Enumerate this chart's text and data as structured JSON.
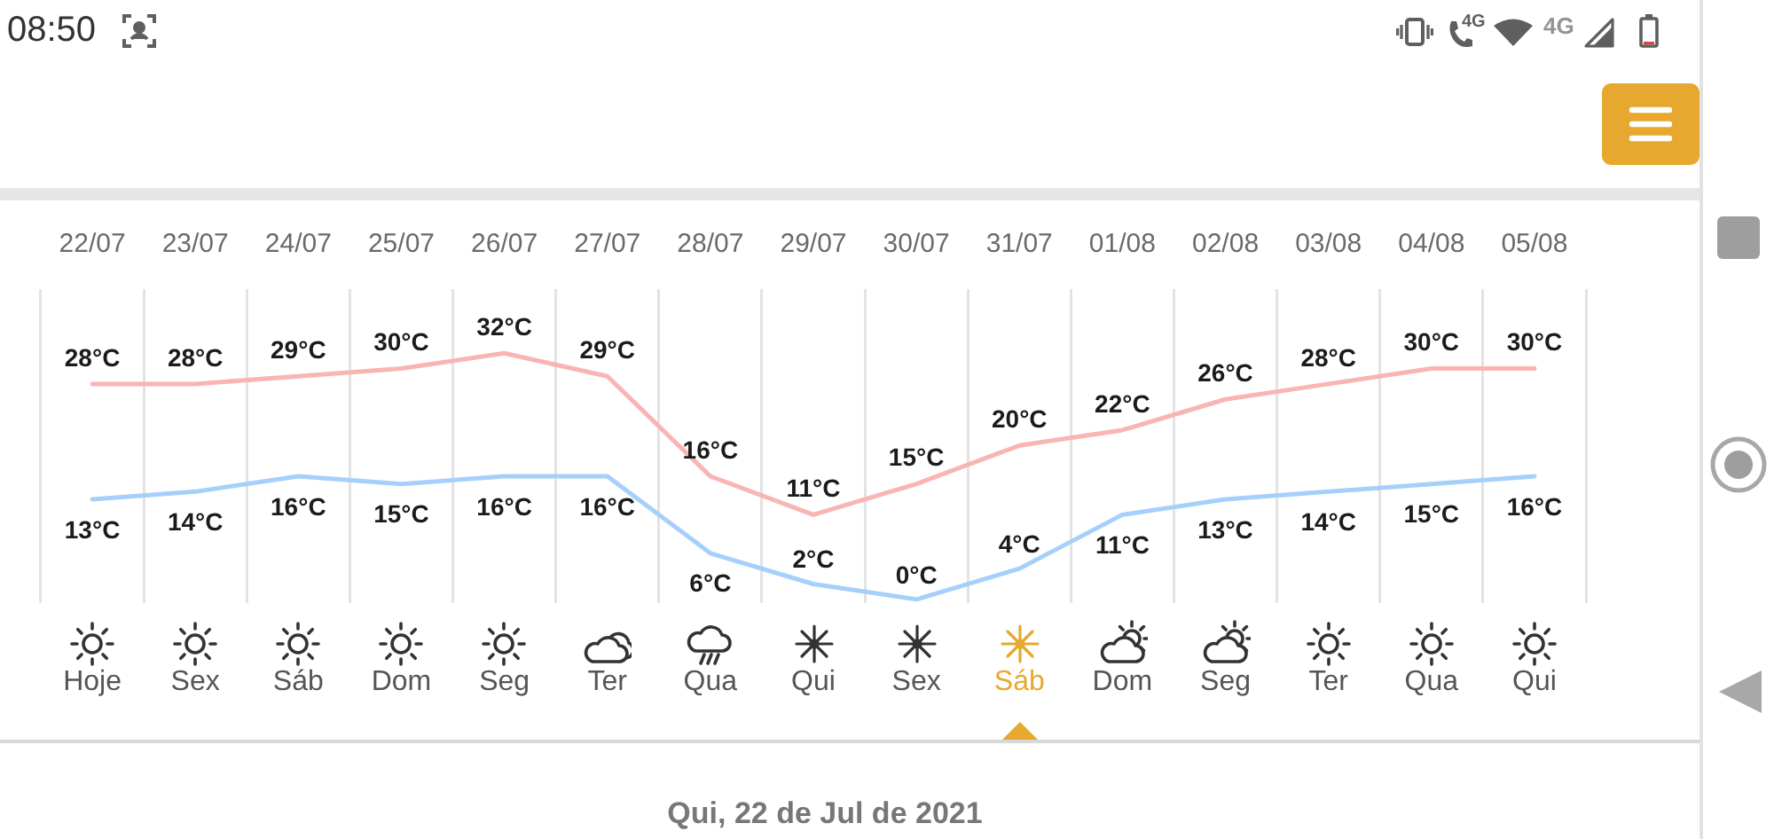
{
  "chart_data": {
    "type": "line",
    "categories": [
      "22/07",
      "23/07",
      "24/07",
      "25/07",
      "26/07",
      "27/07",
      "28/07",
      "29/07",
      "30/07",
      "31/07",
      "01/08",
      "02/08",
      "03/08",
      "04/08",
      "05/08"
    ],
    "series": [
      {
        "color": "#f9b4b4",
        "values": [
          28,
          28,
          29,
          30,
          32,
          29,
          16,
          11,
          15,
          20,
          22,
          26,
          28,
          30,
          30
        ],
        "value_labels": [
          "28°C",
          "28°C",
          "29°C",
          "30°C",
          "32°C",
          "29°C",
          "16°C",
          "11°C",
          "15°C",
          "20°C",
          "22°C",
          "26°C",
          "28°C",
          "30°C",
          "30°C"
        ]
      },
      {
        "color": "#a6d0fb",
        "values": [
          13,
          14,
          16,
          15,
          16,
          16,
          6,
          2,
          0,
          4,
          11,
          13,
          14,
          15,
          16
        ],
        "value_labels": [
          "13°C",
          "14°C",
          "16°C",
          "15°C",
          "16°C",
          "16°C",
          "6°C",
          "2°C",
          "0°C",
          "4°C",
          "11°C",
          "13°C",
          "14°C",
          "15°C",
          "16°C"
        ]
      }
    ],
    "annotations": [
      "08:50",
      "4G",
      "4G",
      "Hoje",
      "Sex",
      "Sáb",
      "Dom",
      "Seg",
      "Ter",
      "Qua",
      "Qui",
      "Sex",
      "Sáb",
      "Dom",
      "Seg",
      "Ter",
      "Qua",
      "Qui",
      "Qui, 22 de Jul de 2021"
    ],
    "grid": "x",
    "legend": false,
    "marker": "none"
  }
}
